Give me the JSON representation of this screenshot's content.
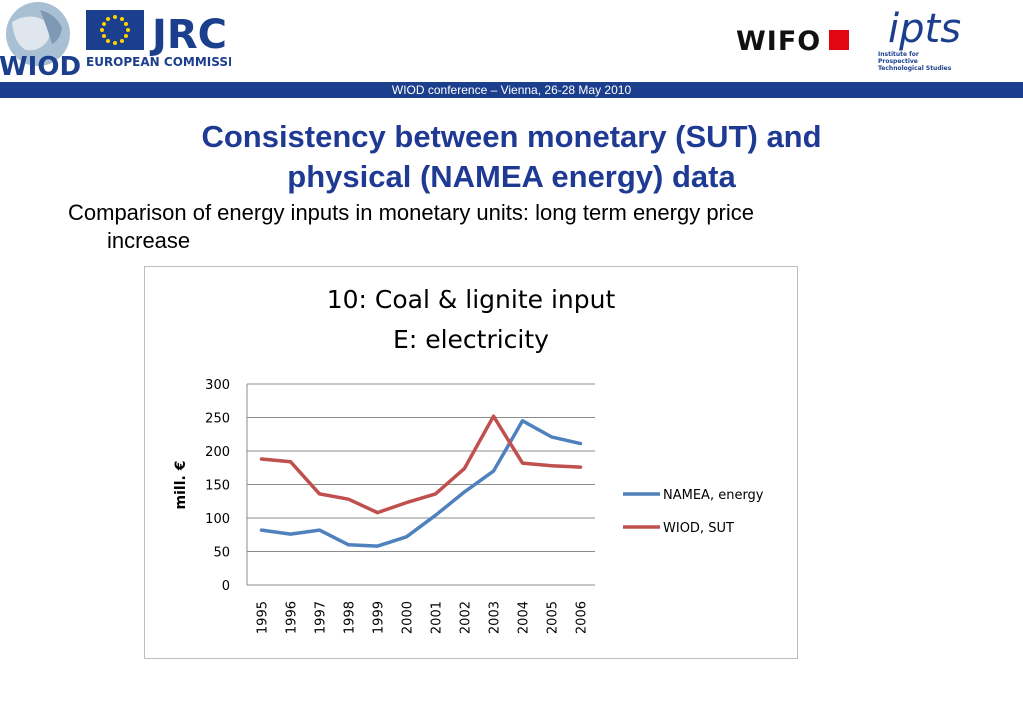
{
  "header": {
    "wiod_logo_text": "WIOD",
    "jrc_logo_text": "JRC",
    "jrc_logo_subtext": "EUROPEAN COMMISSION",
    "wifo_logo_text": "WIFO",
    "ipts_logo_text": "ipts",
    "ipts_logo_caption": [
      "Institute for",
      "Prospective",
      "Technological Studies"
    ],
    "banner_text": "WIOD conference – Vienna, 26-28 May 2010",
    "banner_color": "#1b3f8d"
  },
  "slide": {
    "title_line1": "Consistency between monetary (SUT) and",
    "title_line2": "physical (NAMEA energy) data",
    "subtitle_line1": "Comparison of energy inputs in monetary units: long term energy price",
    "subtitle_line2": "increase",
    "title_color": "#1f3a93"
  },
  "chart_data": {
    "type": "line",
    "title": "10: Coal & lignite input",
    "subtitle": "E: electricity",
    "xlabel": "",
    "ylabel": "mill. €",
    "ylim": [
      0,
      300
    ],
    "yticks": [
      0,
      50,
      100,
      150,
      200,
      250,
      300
    ],
    "grid": true,
    "legend_position": "right",
    "x": [
      "1995",
      "1996",
      "1997",
      "1998",
      "1999",
      "2000",
      "2001",
      "2002",
      "2003",
      "2004",
      "2005",
      "2006"
    ],
    "series": [
      {
        "name": "NAMEA, energy",
        "color": "#4f81bd",
        "values": [
          82,
          76,
          82,
          60,
          58,
          72,
          104,
          139,
          170,
          245,
          221,
          211
        ]
      },
      {
        "name": "WIOD, SUT",
        "color": "#c0504d",
        "values": [
          188,
          184,
          136,
          128,
          108,
          123,
          136,
          174,
          252,
          182,
          178,
          176
        ]
      }
    ]
  }
}
